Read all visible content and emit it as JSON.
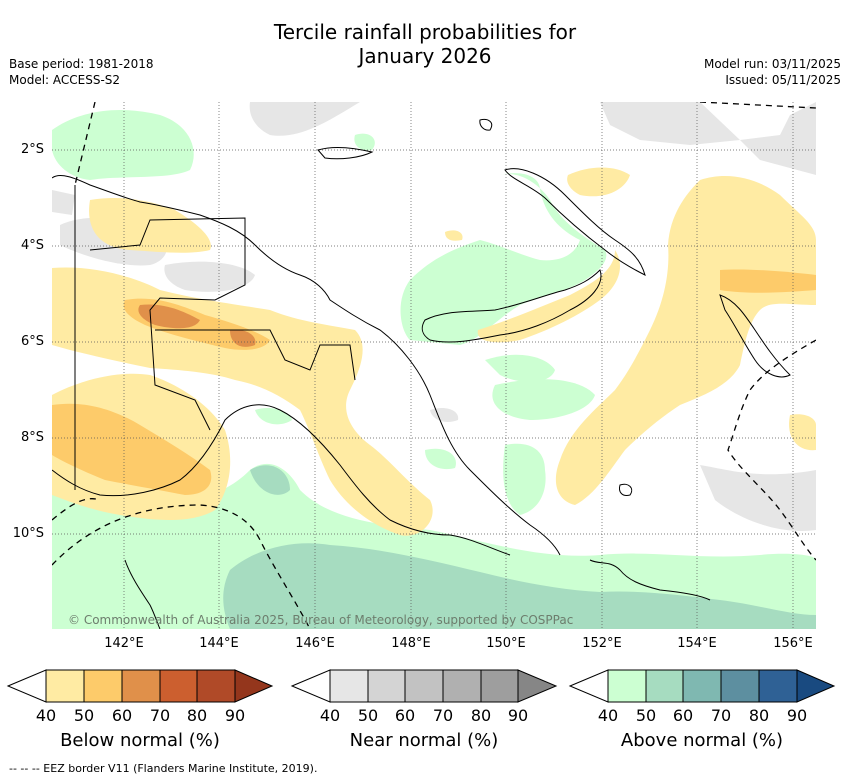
{
  "title_line1": "Tercile rainfall probabilities for",
  "title_line2": "January 2026",
  "meta_left": {
    "base_period": "Base period: 1981-2018",
    "model": "Model: ACCESS-S2"
  },
  "meta_right": {
    "model_run": "Model run: 03/11/2025",
    "issued": "Issued: 05/11/2025"
  },
  "map": {
    "lat_labels": [
      "2°S",
      "4°S",
      "6°S",
      "8°S",
      "10°S"
    ],
    "lon_labels": [
      "142°E",
      "144°E",
      "146°E",
      "148°E",
      "150°E",
      "152°E",
      "154°E",
      "156°E"
    ],
    "copyright": "© Commonwealth of Australia 2025, Bureau of Meteorology, supported by COSPPac"
  },
  "colorbars": {
    "below": {
      "title": "Below normal (%)",
      "ticks": [
        "40",
        "50",
        "60",
        "70",
        "80",
        "90"
      ],
      "colors": [
        "#ffeba3",
        "#fdcb6a",
        "#e0904a",
        "#cc5f2f",
        "#b04a28",
        "#94361c"
      ]
    },
    "near": {
      "title": "Near normal (%)",
      "ticks": [
        "40",
        "50",
        "60",
        "70",
        "80",
        "90"
      ],
      "colors": [
        "#e6e6e6",
        "#d4d4d4",
        "#c2c2c2",
        "#b0b0b0",
        "#9e9e9e",
        "#868686"
      ]
    },
    "above": {
      "title": "Above normal (%)",
      "ticks": [
        "40",
        "50",
        "60",
        "70",
        "80",
        "90"
      ],
      "colors": [
        "#ccffd2",
        "#a6dcc0",
        "#7fb8b1",
        "#5d8fa0",
        "#2f6195",
        "#194a80"
      ]
    }
  },
  "footer": {
    "eez_note": "--  --  -- EEZ border V11 (Flanders Marine Institute, 2019)."
  }
}
